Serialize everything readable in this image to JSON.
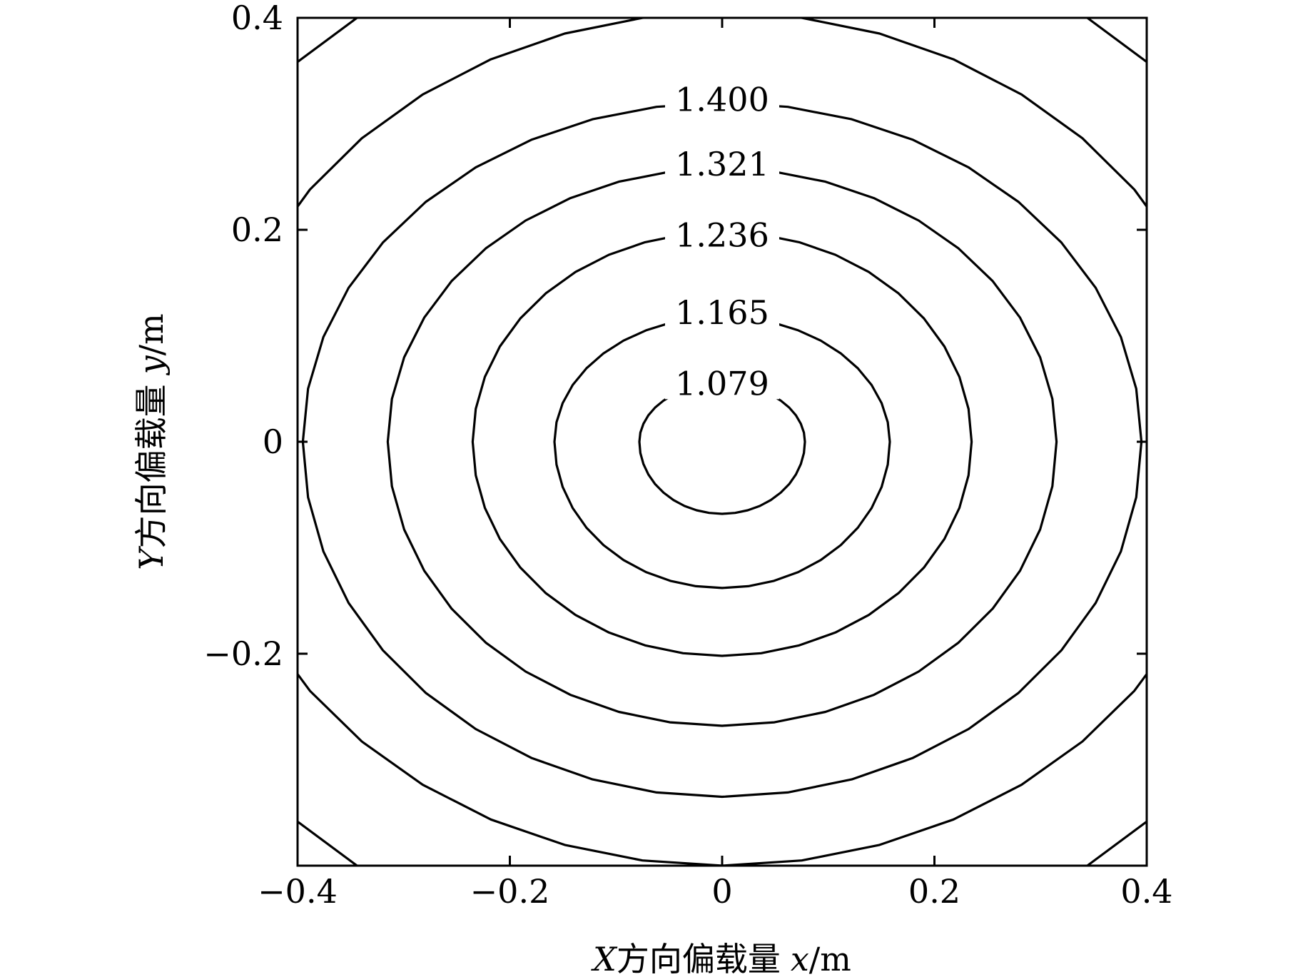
{
  "chart_data": {
    "type": "contour",
    "xlabel": {
      "prefix": "X",
      "cn": "方向偏载量",
      "var": "x",
      "unit": "/m"
    },
    "ylabel": {
      "prefix": "Y",
      "cn": "方向偏载量",
      "var": "y",
      "unit": "/m"
    },
    "xlim": [
      -0.4,
      0.4
    ],
    "ylim": [
      -0.4,
      0.4
    ],
    "x_ticks": [
      {
        "value": -0.4,
        "label": "−0.4"
      },
      {
        "value": -0.2,
        "label": "−0.2"
      },
      {
        "value": 0,
        "label": "0"
      },
      {
        "value": 0.2,
        "label": "0.2"
      },
      {
        "value": 0.4,
        "label": "0.4"
      }
    ],
    "y_ticks": [
      {
        "value": 0.4,
        "label": "0.4"
      },
      {
        "value": 0.2,
        "label": "0.2"
      },
      {
        "value": 0,
        "label": "0"
      },
      {
        "value": -0.2,
        "label": "−0.2"
      }
    ],
    "grid": false,
    "contours": [
      {
        "level": "1.079",
        "rx": 0.078,
        "ry_top": 0.055,
        "ry_bottom": 0.068,
        "label_y": 0.055
      },
      {
        "level": "1.165",
        "rx": 0.158,
        "ry_top": 0.118,
        "ry_bottom": 0.138,
        "label_y": 0.122
      },
      {
        "level": "1.236",
        "rx": 0.235,
        "ry_top": 0.198,
        "ry_bottom": 0.202,
        "label_y": 0.195
      },
      {
        "level": "1.321",
        "rx": 0.315,
        "ry_top": 0.258,
        "ry_bottom": 0.268,
        "label_y": 0.262
      },
      {
        "level": "1.400",
        "rx": 0.395,
        "ry_top": 0.32,
        "ry_bottom": 0.335,
        "label_y": 0.323
      },
      {
        "level": "",
        "rx": 0.48,
        "ry_top": 0.405,
        "ry_bottom": 0.4,
        "label_y": null
      },
      {
        "level": "",
        "rx": 0.575,
        "ry_top": 0.5,
        "ry_bottom": 0.5,
        "label_y": null
      }
    ]
  }
}
